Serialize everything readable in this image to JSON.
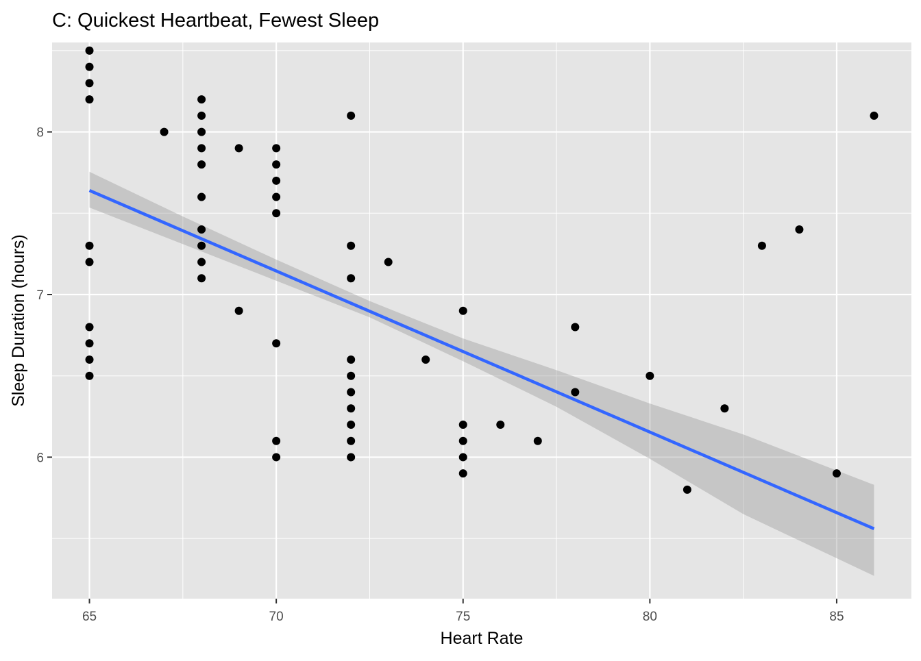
{
  "chart_data": {
    "type": "scatter",
    "title": "C: Quickest Heartbeat, Fewest Sleep",
    "xlabel": "Heart Rate",
    "ylabel": "Sleep Duration (hours)",
    "xlim": [
      64,
      87
    ],
    "ylim": [
      5.13,
      8.55
    ],
    "x_ticks": [
      65,
      70,
      75,
      80,
      85
    ],
    "y_ticks": [
      6,
      7,
      8
    ],
    "grid": true,
    "colors": {
      "panel": "#e5e5e5",
      "grid": "#ffffff",
      "points": "#000000",
      "fit_line": "#3366ff",
      "confidence_band": "#999999"
    },
    "points": [
      [
        65,
        8.5
      ],
      [
        65,
        8.4
      ],
      [
        65,
        8.3
      ],
      [
        65,
        8.2
      ],
      [
        65,
        7.3
      ],
      [
        65,
        7.2
      ],
      [
        65,
        6.8
      ],
      [
        65,
        6.7
      ],
      [
        65,
        6.6
      ],
      [
        65,
        6.5
      ],
      [
        67,
        8.0
      ],
      [
        68,
        8.2
      ],
      [
        68,
        8.1
      ],
      [
        68,
        8.0
      ],
      [
        68,
        7.9
      ],
      [
        68,
        7.8
      ],
      [
        68,
        7.6
      ],
      [
        68,
        7.4
      ],
      [
        68,
        7.3
      ],
      [
        68,
        7.2
      ],
      [
        68,
        7.1
      ],
      [
        69,
        7.9
      ],
      [
        69,
        6.9
      ],
      [
        70,
        7.9
      ],
      [
        70,
        7.8
      ],
      [
        70,
        7.7
      ],
      [
        70,
        7.6
      ],
      [
        70,
        7.5
      ],
      [
        70,
        6.7
      ],
      [
        70,
        6.1
      ],
      [
        70,
        6.0
      ],
      [
        72,
        8.1
      ],
      [
        72,
        7.3
      ],
      [
        72,
        7.1
      ],
      [
        72,
        6.6
      ],
      [
        72,
        6.5
      ],
      [
        72,
        6.4
      ],
      [
        72,
        6.3
      ],
      [
        72,
        6.2
      ],
      [
        72,
        6.1
      ],
      [
        72,
        6.0
      ],
      [
        73,
        7.2
      ],
      [
        74,
        6.6
      ],
      [
        75,
        6.9
      ],
      [
        75,
        6.2
      ],
      [
        75,
        6.1
      ],
      [
        75,
        6.0
      ],
      [
        75,
        5.9
      ],
      [
        76,
        6.2
      ],
      [
        77,
        6.1
      ],
      [
        78,
        6.8
      ],
      [
        78,
        6.4
      ],
      [
        80,
        6.5
      ],
      [
        81,
        5.8
      ],
      [
        82,
        6.3
      ],
      [
        83,
        7.3
      ],
      [
        84,
        7.4
      ],
      [
        85,
        5.9
      ],
      [
        86,
        8.1
      ]
    ],
    "fit_line": {
      "x": [
        65,
        86
      ],
      "y": [
        7.64,
        5.56
      ]
    },
    "confidence_band": {
      "x": [
        65,
        67.5,
        70,
        72.5,
        75,
        77.5,
        80,
        82.5,
        86
      ],
      "upper": [
        7.755,
        7.48,
        7.215,
        6.96,
        6.73,
        6.535,
        6.33,
        6.14,
        5.83
      ],
      "lower": [
        7.535,
        7.31,
        7.085,
        6.86,
        6.59,
        6.31,
        5.99,
        5.65,
        5.27
      ]
    }
  }
}
